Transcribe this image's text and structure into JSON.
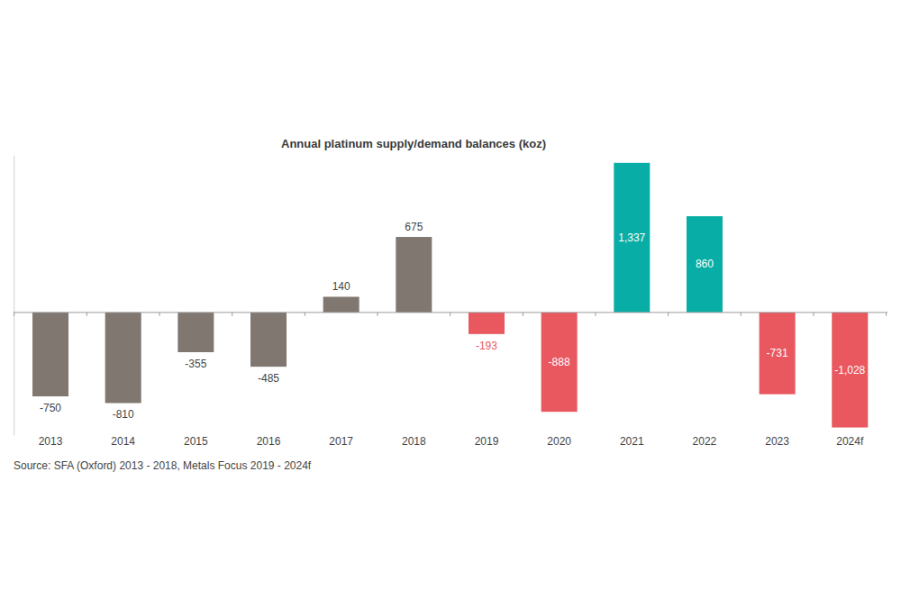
{
  "chart_data": {
    "type": "bar",
    "title": "Annual platinum supply/demand balances (koz)",
    "source": "Source: SFA (Oxford) 2013 - 2018, Metals Focus 2019 - 2024f",
    "categories": [
      "2013",
      "2014",
      "2015",
      "2016",
      "2017",
      "2018",
      "2019",
      "2020",
      "2021",
      "2022",
      "2023",
      "2024f"
    ],
    "values": [
      -750,
      -810,
      -355,
      -485,
      140,
      675,
      -193,
      -888,
      1337,
      860,
      -731,
      -1028
    ],
    "value_labels": [
      "-750",
      "-810",
      "-355",
      "-485",
      "140",
      "675",
      "-193",
      "-888",
      "1,337",
      "860",
      "-731",
      "-1,028"
    ],
    "colors": [
      "#7f7770",
      "#7f7770",
      "#7f7770",
      "#7f7770",
      "#7f7770",
      "#7f7770",
      "#e9575f",
      "#e9575f",
      "#08ada6",
      "#08ada6",
      "#e9575f",
      "#e9575f"
    ],
    "ylim": [
      -1100,
      1400
    ],
    "yticks": [],
    "tick_labels": "x",
    "data_labels": true,
    "grid": false
  }
}
